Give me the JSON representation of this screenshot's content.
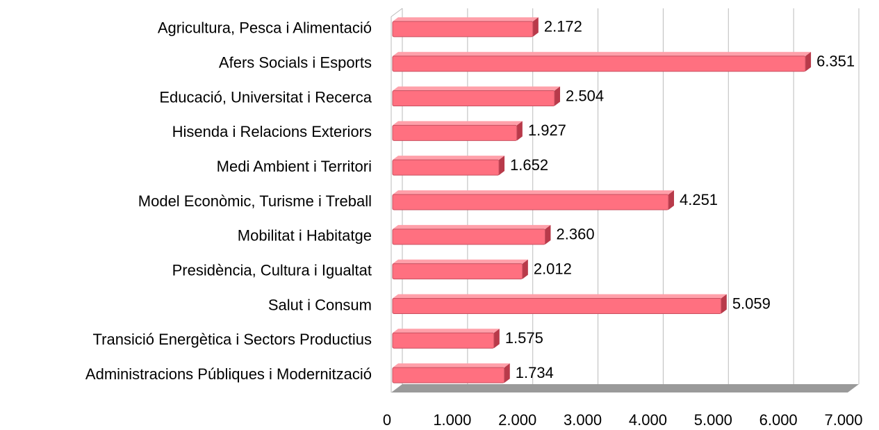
{
  "chart_data": {
    "type": "bar",
    "orientation": "horizontal",
    "categories": [
      "Agricultura, Pesca i Alimentació",
      "Afers Socials i Esports",
      "Educació, Universitat i Recerca",
      "Hisenda i Relacions Exteriors",
      "Medi Ambient i Territori",
      "Model Econòmic, Turisme i Treball",
      "Mobilitat i Habitatge",
      "Presidència, Cultura i Igualtat",
      "Salut i Consum",
      "Transició Energètica i Sectors Productius",
      "Administracions Públiques i Modernització"
    ],
    "values": [
      2172,
      6351,
      2504,
      1927,
      1652,
      4251,
      2360,
      2012,
      5059,
      1575,
      1734
    ],
    "value_labels": [
      "2.172",
      "6.351",
      "2.504",
      "1.927",
      "1.652",
      "4.251",
      "2.360",
      "2.012",
      "5.059",
      "1.575",
      "1.734"
    ],
    "color": "#ff7080",
    "xlim": [
      0,
      7000
    ],
    "xticks": [
      0,
      {
        "value": 1000,
        "label": "1.000"
      },
      {
        "value": 2000,
        "label": "2.000"
      },
      {
        "value": 3000,
        "label": "3.000"
      },
      {
        "value": 4000,
        "label": "4.000"
      },
      {
        "value": 5000,
        "label": "5.000"
      },
      {
        "value": 6000,
        "label": "6.000"
      },
      {
        "value": 7000,
        "label": "7.000"
      }
    ],
    "grid": true
  }
}
